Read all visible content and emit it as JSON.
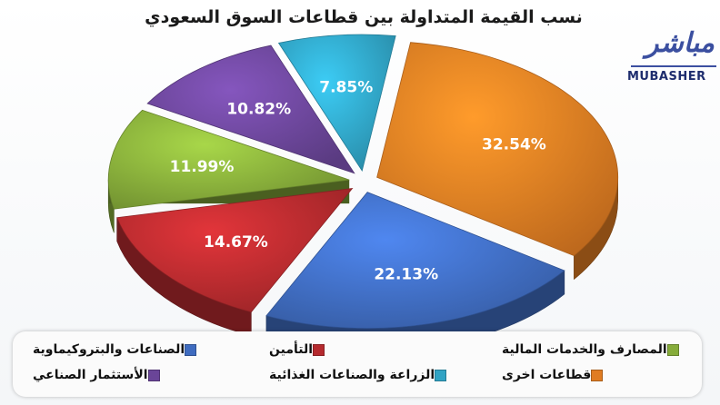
{
  "title": "نسب القيمة المتداولة بين قطاعات السوق السعودي",
  "logo": {
    "arabic": "مباشر",
    "english": "MUBASHER"
  },
  "chart_data": {
    "type": "pie",
    "style": "3d-exploded",
    "slices": [
      {
        "label": "قطاعات اخرى",
        "value": 32.54,
        "display": "32.54%",
        "color": "#e07c22"
      },
      {
        "label": "الصناعات والبتروكيماوية",
        "value": 22.13,
        "display": "22.13%",
        "color": "#3f6cc0"
      },
      {
        "label": "التأمين",
        "value": 14.67,
        "display": "14.67%",
        "color": "#b52a2e"
      },
      {
        "label": "المصارف والخدمات المالية",
        "value": 11.99,
        "display": "11.99%",
        "color": "#86ac3a"
      },
      {
        "label": "الأستثمار الصناعي",
        "value": 10.82,
        "display": "10.82%",
        "color": "#6a4598"
      },
      {
        "label": "الزراعة والصناعات الغذائية",
        "value": 7.85,
        "display": "7.85%",
        "color": "#30a3c4"
      }
    ],
    "legend_position": "bottom"
  },
  "legend": [
    {
      "label": "الصناعات والبتروكيماوية",
      "color": "#3f6cc0"
    },
    {
      "label": "التأمين",
      "color": "#b52a2e"
    },
    {
      "label": "المصارف والخدمات المالية",
      "color": "#86ac3a"
    },
    {
      "label": "الأستثمار الصناعي",
      "color": "#6a4598"
    },
    {
      "label": "الزراعة والصناعات الغذائية",
      "color": "#30a3c4"
    },
    {
      "label": "قطاعات اخرى",
      "color": "#e07c22"
    }
  ]
}
